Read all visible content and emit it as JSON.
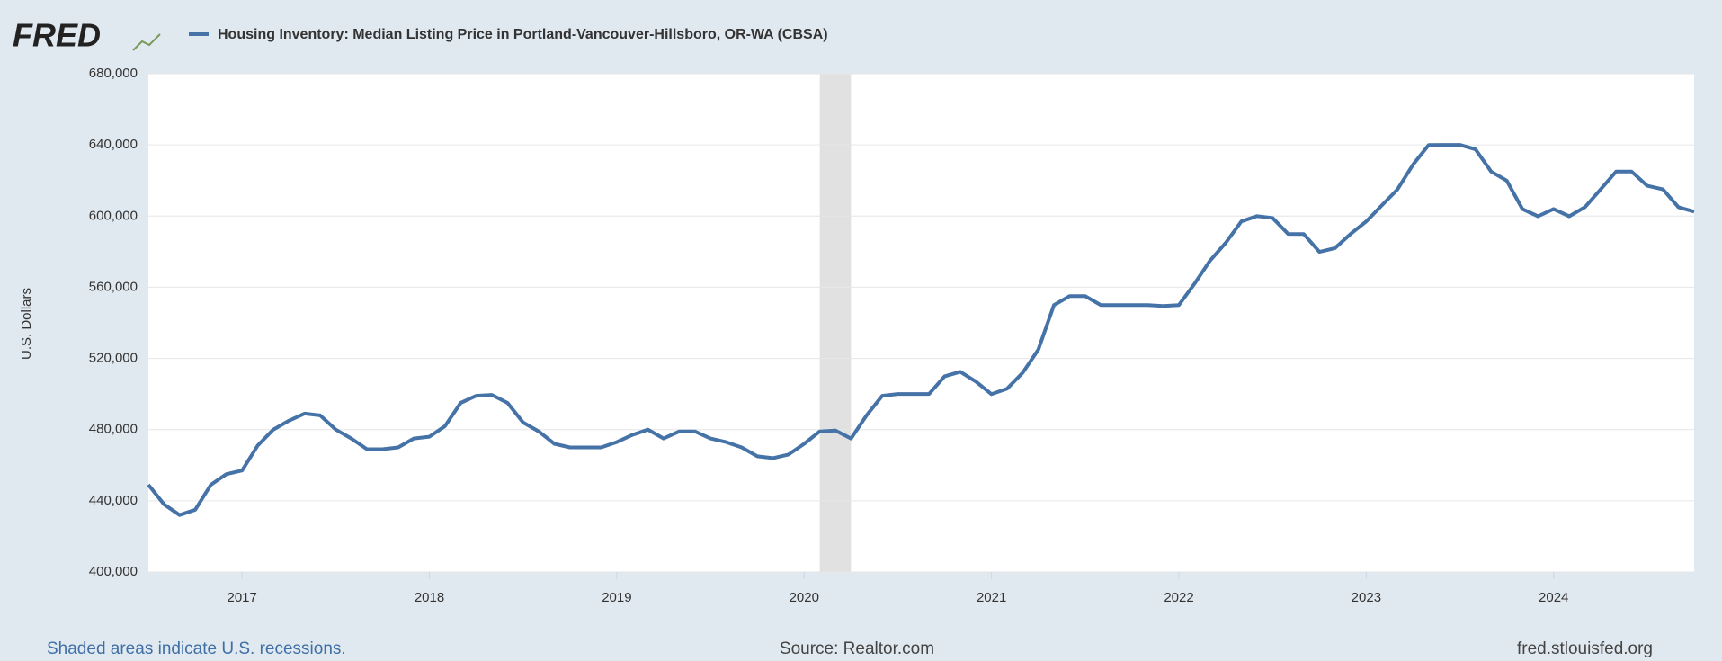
{
  "logo": "FRED",
  "chart_data": {
    "type": "line",
    "title": "Housing Inventory: Median Listing Price in Portland-Vancouver-Hillsboro, OR-WA (CBSA)",
    "y_label": "U.S. Dollars",
    "note": "Shaded areas indicate U.S. recessions.",
    "source": "Source: Realtor.com",
    "url": "fred.stlouisfed.org",
    "xlim": [
      "2016-07",
      "2024-10"
    ],
    "xticks": [
      2017,
      2018,
      2019,
      2020,
      2021,
      2022,
      2023,
      2024
    ],
    "ylim": [
      400000,
      680000
    ],
    "yticks": [
      {
        "value": 400000,
        "label": "400,000"
      },
      {
        "value": 440000,
        "label": "440,000"
      },
      {
        "value": 480000,
        "label": "480,000"
      },
      {
        "value": 520000,
        "label": "520,000"
      },
      {
        "value": 560000,
        "label": "560,000"
      },
      {
        "value": 600000,
        "label": "600,000"
      },
      {
        "value": 640000,
        "label": "640,000"
      },
      {
        "value": 680000,
        "label": "680,000"
      }
    ],
    "grid": true,
    "recessions": [
      {
        "start": "2020-02",
        "end": "2020-04"
      }
    ],
    "x": [
      "2016-07",
      "2016-08",
      "2016-09",
      "2016-10",
      "2016-11",
      "2016-12",
      "2017-01",
      "2017-02",
      "2017-03",
      "2017-04",
      "2017-05",
      "2017-06",
      "2017-07",
      "2017-08",
      "2017-09",
      "2017-10",
      "2017-11",
      "2017-12",
      "2018-01",
      "2018-02",
      "2018-03",
      "2018-04",
      "2018-05",
      "2018-06",
      "2018-07",
      "2018-08",
      "2018-09",
      "2018-10",
      "2018-11",
      "2018-12",
      "2019-01",
      "2019-02",
      "2019-03",
      "2019-04",
      "2019-05",
      "2019-06",
      "2019-07",
      "2019-08",
      "2019-09",
      "2019-10",
      "2019-11",
      "2019-12",
      "2020-01",
      "2020-02",
      "2020-03",
      "2020-04",
      "2020-05",
      "2020-06",
      "2020-07",
      "2020-08",
      "2020-09",
      "2020-10",
      "2020-11",
      "2020-12",
      "2021-01",
      "2021-02",
      "2021-03",
      "2021-04",
      "2021-05",
      "2021-06",
      "2021-07",
      "2021-08",
      "2021-09",
      "2021-10",
      "2021-11",
      "2021-12",
      "2022-01",
      "2022-02",
      "2022-03",
      "2022-04",
      "2022-05",
      "2022-06",
      "2022-07",
      "2022-08",
      "2022-09",
      "2022-10",
      "2022-11",
      "2022-12",
      "2023-01",
      "2023-02",
      "2023-03",
      "2023-04",
      "2023-05",
      "2023-06",
      "2023-07",
      "2023-08",
      "2023-09",
      "2023-10",
      "2023-11",
      "2023-12",
      "2024-01",
      "2024-02",
      "2024-03",
      "2024-04",
      "2024-05",
      "2024-06",
      "2024-07",
      "2024-08",
      "2024-09",
      "2024-10"
    ],
    "series": [
      {
        "name": "Housing Inventory: Median Listing Price in Portland-Vancouver-Hillsboro, OR-WA (CBSA)",
        "color": "#4572a7",
        "values": [
          449000,
          438000,
          432000,
          435000,
          449000,
          455000,
          457000,
          471000,
          480000,
          485000,
          489000,
          488000,
          480000,
          475000,
          469000,
          469000,
          470000,
          475000,
          476000,
          482000,
          495000,
          499000,
          499500,
          495000,
          484000,
          479000,
          472000,
          470000,
          470000,
          470000,
          473000,
          477000,
          480000,
          475000,
          479000,
          479000,
          475000,
          473000,
          470000,
          465000,
          464000,
          466000,
          472000,
          479000,
          479500,
          475000,
          488000,
          499000,
          500000,
          500000,
          500000,
          510000,
          512500,
          507000,
          499900,
          503000,
          512000,
          525000,
          550000,
          555000,
          555000,
          550000,
          550000,
          550000,
          550000,
          549500,
          550000,
          562000,
          575000,
          585000,
          597000,
          600000,
          599000,
          590000,
          589900,
          579900,
          582000,
          590000,
          597000,
          606000,
          615000,
          629000,
          639900,
          640000,
          640000,
          637500,
          625000,
          619900,
          604000,
          599900,
          604000,
          599900,
          605000,
          614900,
          625000,
          625000,
          617000,
          615000,
          605000,
          602500
        ]
      }
    ]
  }
}
